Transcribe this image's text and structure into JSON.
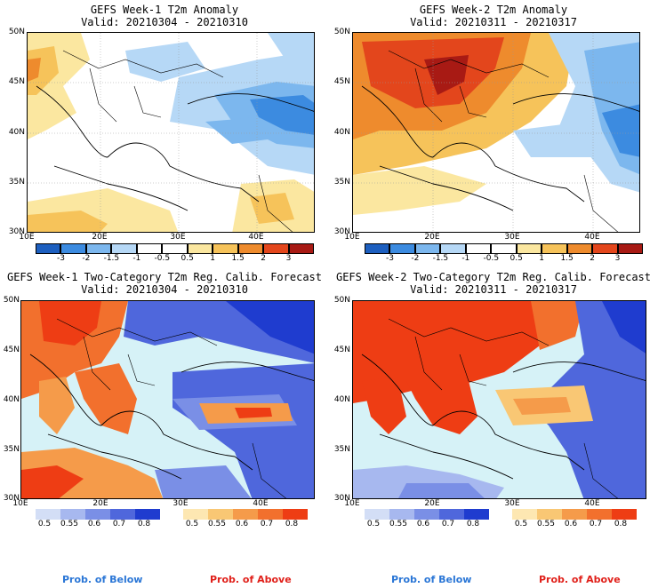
{
  "panels": [
    {
      "id": "w1-anom",
      "title1": "GEFS Week-1 T2m Anomaly",
      "title2": "Valid: 20210304 - 20210310",
      "ylabels": [
        "50N",
        "45N",
        "40N",
        "35N",
        "30N"
      ],
      "xlabels": [
        "10E",
        "20E",
        "30E",
        "40E"
      ],
      "colorbar": {
        "colors": [
          "#1d5fbf",
          "#3c8be0",
          "#7cb7ee",
          "#b6d8f6",
          "#ffffff",
          "#ffffff",
          "#fbe7a0",
          "#f6c35a",
          "#ee8b2d",
          "#e3461c",
          "#a81a14"
        ],
        "labels": [
          "-3",
          "-2",
          "-1.5",
          "-1",
          "-0.5",
          "0.5",
          "1",
          "1.5",
          "2",
          "3"
        ]
      }
    },
    {
      "id": "w2-anom",
      "title1": "GEFS Week-2 T2m Anomaly",
      "title2": "Valid: 20210311 - 20210317",
      "ylabels": [
        "50N",
        "45N",
        "40N",
        "35N",
        "30N"
      ],
      "xlabels": [
        "10E",
        "20E",
        "30E",
        "40E"
      ],
      "colorbar": {
        "colors": [
          "#1d5fbf",
          "#3c8be0",
          "#7cb7ee",
          "#b6d8f6",
          "#ffffff",
          "#ffffff",
          "#fbe7a0",
          "#f6c35a",
          "#ee8b2d",
          "#e3461c",
          "#a81a14"
        ],
        "labels": [
          "-3",
          "-2",
          "-1.5",
          "-1",
          "-0.5",
          "0.5",
          "1",
          "1.5",
          "2",
          "3"
        ]
      }
    },
    {
      "id": "w1-prob",
      "title1": "GEFS Week-1 Two-Category T2m Reg. Calib. Forecast",
      "title2": "Valid: 20210304 - 20210310",
      "ylabels": [
        "50N",
        "45N",
        "40N",
        "35N",
        "30N"
      ],
      "xlabels": [
        "10E",
        "20E",
        "30E",
        "40E"
      ],
      "below_colors": [
        "#d3def6",
        "#a7b8ef",
        "#7a8fe6",
        "#4f67dc",
        "#1f3ccf"
      ],
      "above_colors": [
        "#fde7b2",
        "#f9c774",
        "#f59b4a",
        "#f2702d",
        "#ee3d14"
      ],
      "below_labels": [
        "0.5",
        "0.55",
        "0.6",
        "0.7",
        "0.8"
      ],
      "above_labels": [
        "0.5",
        "0.55",
        "0.6",
        "0.7",
        "0.8"
      ],
      "below_title": "Prob. of Below",
      "above_title": "Prob. of Above"
    },
    {
      "id": "w2-prob",
      "title1": "GEFS Week-2 Two-Category T2m Reg. Calib. Forecast",
      "title2": "Valid: 20210311 - 20210317",
      "ylabels": [
        "50N",
        "45N",
        "40N",
        "35N",
        "30N"
      ],
      "xlabels": [
        "10E",
        "20E",
        "30E",
        "40E"
      ],
      "below_colors": [
        "#d3def6",
        "#a7b8ef",
        "#7a8fe6",
        "#4f67dc",
        "#1f3ccf"
      ],
      "above_colors": [
        "#fde7b2",
        "#f9c774",
        "#f59b4a",
        "#f2702d",
        "#ee3d14"
      ],
      "below_labels": [
        "0.5",
        "0.55",
        "0.6",
        "0.7",
        "0.8"
      ],
      "above_labels": [
        "0.5",
        "0.55",
        "0.6",
        "0.7",
        "0.8"
      ],
      "below_title": "Prob. of Below",
      "above_title": "Prob. of Above"
    }
  ],
  "colors": {
    "sea": "#d6f2f7",
    "below_text": "#2a76d6",
    "above_text": "#e0201a"
  }
}
